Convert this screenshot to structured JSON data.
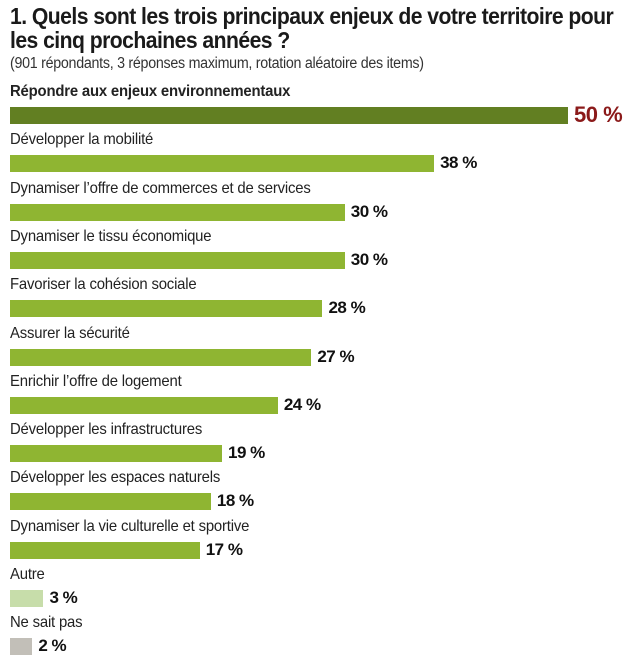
{
  "chart_data": {
    "type": "bar",
    "orientation": "horizontal",
    "title": "1. Quels sont les trois principaux enjeux de votre territoire pour les cinq prochaines années ?",
    "subtitle": "(901 répondants, 3 réponses maximum, rotation aléatoire des items)",
    "xlabel": "",
    "ylabel": "",
    "xlim": [
      0,
      50
    ],
    "grid": false,
    "unit": "%",
    "categories": [
      "Répondre aux enjeux environnementaux",
      "Développer la mobilité",
      "Dynamiser l’offre de commerces et de services",
      "Dynamiser le tissu économique",
      "Favoriser la cohésion sociale",
      "Assurer la sécurité",
      "Enrichir l’offre de logement",
      "Développer les infrastructures",
      "Développer les espaces naturels",
      "Dynamiser la vie culturelle et sportive",
      "Autre",
      "Ne sait pas"
    ],
    "values": [
      50,
      38,
      30,
      30,
      28,
      27,
      24,
      19,
      18,
      17,
      3,
      2
    ],
    "value_labels": [
      "50 %",
      "38 %",
      "30 %",
      "30 %",
      "28 %",
      "27 %",
      "24 %",
      "19 %",
      "18 %",
      "17 %",
      "3 %",
      "2 %"
    ],
    "bar_colors": [
      "#627f22",
      "#8fb532",
      "#8fb532",
      "#8fb532",
      "#8fb532",
      "#8fb532",
      "#8fb532",
      "#8fb532",
      "#8fb532",
      "#8fb532",
      "#c7ddaa",
      "#c2bfb8"
    ],
    "highlight_value_color": "#8b1a1a"
  }
}
